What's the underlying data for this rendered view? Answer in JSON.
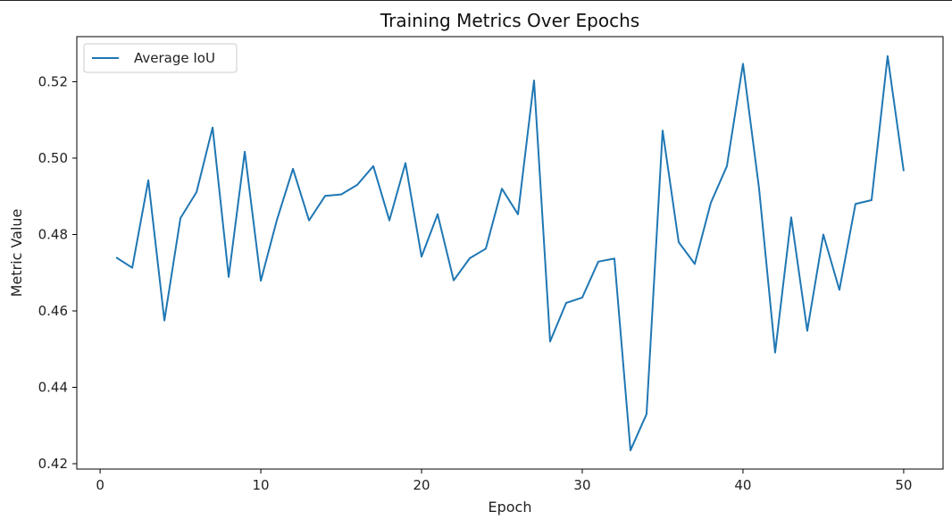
{
  "chart_data": {
    "type": "line",
    "title": "Training Metrics Over Epochs",
    "xlabel": "Epoch",
    "ylabel": "Metric Value",
    "xlim": [
      -1.45,
      52.45
    ],
    "ylim": [
      0.4186,
      0.5318
    ],
    "x_ticks": [
      0,
      10,
      20,
      30,
      40,
      50
    ],
    "y_ticks": [
      0.42,
      0.44,
      0.46,
      0.48,
      0.5,
      0.52
    ],
    "y_tick_labels": [
      "0.42",
      "0.44",
      "0.46",
      "0.48",
      "0.50",
      "0.52"
    ],
    "grid": false,
    "legend_position": "top-left",
    "series": [
      {
        "name": "Average IoU",
        "color": "#1f77b4",
        "x": [
          1,
          2,
          3,
          4,
          5,
          6,
          7,
          8,
          9,
          10,
          11,
          12,
          13,
          14,
          15,
          16,
          17,
          18,
          19,
          20,
          21,
          22,
          23,
          24,
          25,
          26,
          27,
          28,
          29,
          30,
          31,
          32,
          33,
          34,
          35,
          36,
          37,
          38,
          39,
          40,
          41,
          42,
          43,
          44,
          45,
          46,
          47,
          48,
          49,
          50
        ],
        "values": [
          0.474,
          0.4713,
          0.4942,
          0.4575,
          0.4843,
          0.4911,
          0.508,
          0.4689,
          0.5017,
          0.4679,
          0.4838,
          0.4972,
          0.4837,
          0.4901,
          0.4905,
          0.493,
          0.4979,
          0.4837,
          0.4987,
          0.4742,
          0.4853,
          0.468,
          0.4738,
          0.4763,
          0.492,
          0.4853,
          0.5203,
          0.452,
          0.4621,
          0.4635,
          0.4729,
          0.4737,
          0.4235,
          0.433,
          0.5072,
          0.478,
          0.4723,
          0.4883,
          0.4979,
          0.5247,
          0.4921,
          0.4491,
          0.4845,
          0.4548,
          0.48,
          0.4655,
          0.488,
          0.489,
          0.5267,
          0.4966
        ]
      }
    ]
  }
}
